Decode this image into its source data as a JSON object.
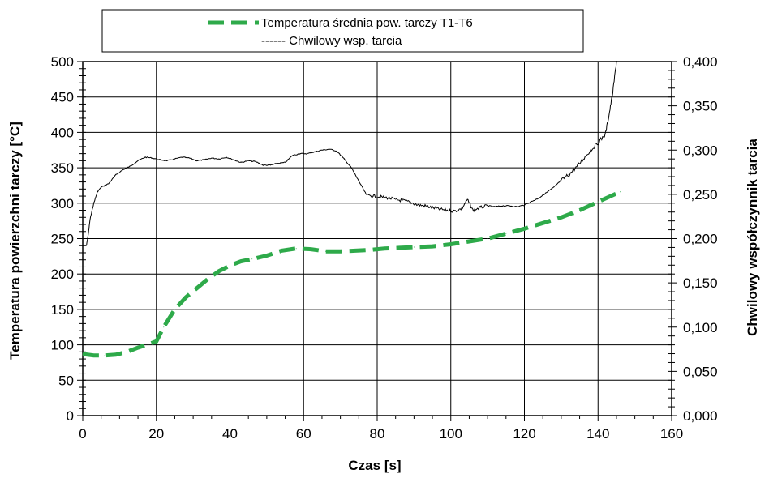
{
  "chart_data": {
    "type": "line",
    "title": "",
    "xlabel": "Czas [s]",
    "ylabel_left": "Temperatura powierzchni tarczy [°C]",
    "ylabel_right": "Chwilowy  współczynnik tarcia",
    "xlim": [
      0,
      160
    ],
    "ylim_left": [
      0,
      500
    ],
    "ylim_right": [
      0.0,
      0.4
    ],
    "x_ticks": [
      "0",
      "20",
      "40",
      "60",
      "80",
      "100",
      "120",
      "140",
      "160"
    ],
    "y_left_ticks": [
      "0",
      "50",
      "100",
      "150",
      "200",
      "250",
      "300",
      "350",
      "400",
      "450",
      "500"
    ],
    "y_right_ticks": [
      "0,000",
      "0,050",
      "0,100",
      "0,150",
      "0,200",
      "0,250",
      "0,300",
      "0,350",
      "0,400"
    ],
    "grid": true,
    "legend_position": "top",
    "legend": [
      {
        "label": "Temperatura średnia pow. tarczy T1-T6",
        "color": "#2eaa4a",
        "style": "dashed-thick"
      },
      {
        "label": "------ Chwilowy wsp. tarcia",
        "color": "#000000",
        "style": "thin"
      }
    ],
    "series": [
      {
        "axis": "left",
        "color": "#2eaa4a",
        "x": [
          0,
          3,
          6,
          9,
          12,
          15,
          18,
          20,
          22,
          25,
          28,
          31,
          34,
          37,
          40,
          43,
          46,
          50,
          54,
          58,
          62,
          66,
          70,
          74,
          78,
          82,
          86,
          90,
          95,
          100,
          105,
          110,
          115,
          120,
          125,
          130,
          135,
          140,
          146
        ],
        "values": [
          87,
          85,
          85,
          86,
          90,
          96,
          101,
          105,
          125,
          150,
          167,
          180,
          193,
          204,
          212,
          218,
          221,
          226,
          233,
          236,
          235,
          232,
          232,
          233,
          234,
          236,
          237,
          238,
          239,
          242,
          246,
          250,
          257,
          264,
          272,
          280,
          290,
          302,
          316
        ]
      },
      {
        "axis": "right",
        "color": "#000000",
        "x": [
          1,
          1.5,
          2,
          3,
          4,
          5,
          7,
          9,
          11,
          13,
          15,
          17,
          19,
          21,
          23,
          25,
          27,
          29,
          31,
          33,
          35,
          37,
          39,
          41,
          43,
          45,
          47,
          49,
          51,
          53,
          55,
          57,
          59,
          61,
          63,
          65,
          67,
          69,
          71,
          73,
          75,
          77,
          79,
          81,
          83,
          85,
          87,
          89,
          91,
          93,
          95,
          97,
          99,
          101,
          103,
          104.5,
          106,
          108,
          110,
          112,
          114,
          116,
          118,
          120,
          122,
          124,
          126,
          128,
          130,
          132,
          134,
          136,
          138,
          140,
          142,
          143,
          144,
          145,
          146
        ],
        "values": [
          0.192,
          0.205,
          0.222,
          0.24,
          0.253,
          0.258,
          0.262,
          0.272,
          0.278,
          0.282,
          0.288,
          0.292,
          0.291,
          0.289,
          0.288,
          0.29,
          0.292,
          0.291,
          0.288,
          0.289,
          0.291,
          0.29,
          0.292,
          0.289,
          0.286,
          0.288,
          0.287,
          0.283,
          0.283,
          0.285,
          0.286,
          0.294,
          0.296,
          0.296,
          0.298,
          0.3,
          0.301,
          0.299,
          0.29,
          0.28,
          0.265,
          0.25,
          0.248,
          0.247,
          0.246,
          0.244,
          0.243,
          0.241,
          0.238,
          0.237,
          0.235,
          0.233,
          0.232,
          0.231,
          0.234,
          0.244,
          0.232,
          0.235,
          0.237,
          0.236,
          0.237,
          0.237,
          0.236,
          0.238,
          0.242,
          0.246,
          0.252,
          0.258,
          0.266,
          0.272,
          0.28,
          0.29,
          0.3,
          0.308,
          0.318,
          0.34,
          0.365,
          0.4,
          0.42
        ]
      }
    ]
  }
}
